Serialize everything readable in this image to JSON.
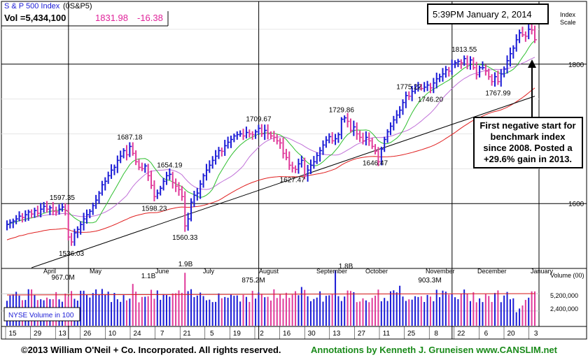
{
  "header": {
    "index_name": "S & P 500 Index",
    "symbol": "(0S&P5)",
    "volume_label": "Vol =5,434,100",
    "last_price": "1831.98",
    "change": "-16.38",
    "timestamp": "5:39PM  January 2, 2014",
    "scale_label_1": "Index",
    "scale_label_2": "Scale"
  },
  "annotation": {
    "lines": [
      "First negative start for",
      "benchmark index",
      "since 2008. Posted a",
      "+29.6% gain in 2013."
    ]
  },
  "footer": {
    "copyright": "©2013 William O'Neil + Co. Incorporated. All rights reserved.",
    "annotator": "Annotations by Kenneth J. Gruneisen www.CANSLIM.net"
  },
  "colors": {
    "up_bar": "#1b1bd6",
    "down_bar": "#e03a9a",
    "ma_short": "#2fbf2f",
    "ma_mid": "#c070d8",
    "ma_50": "#e02020",
    "ma_200": "#000000",
    "vol_avg": "#e02020",
    "highlight": "#e0239a"
  },
  "chart_data": {
    "type": "bar",
    "title": "S & P 500 Index",
    "price_axis": {
      "ticks": [
        1600,
        1800
      ],
      "ylim": [
        1507,
        1890
      ],
      "label": "Index Scale"
    },
    "volume_axis": {
      "ticks": [
        "2,400,000",
        "5,200,000"
      ],
      "ylim": [
        0,
        9200000
      ],
      "label": "Volume (00)",
      "note": "NYSE Volume in 100"
    },
    "x_axis": {
      "day_ticks": [
        "15",
        "29",
        "13",
        "26",
        "10",
        "24",
        "7",
        "21",
        "5",
        "19",
        "2",
        "16",
        "30",
        "13",
        "27",
        "11",
        "25",
        "8",
        "22",
        "6",
        "20",
        "3"
      ],
      "months": [
        "April",
        "May",
        "June",
        "July",
        "August",
        "September",
        "October",
        "November",
        "December",
        "January"
      ]
    },
    "price_labels": [
      {
        "text": "1597.35",
        "pos": "above",
        "bar": 18
      },
      {
        "text": "1536.03",
        "pos": "below",
        "bar": 21
      },
      {
        "text": "1687.18",
        "pos": "above",
        "bar": 40
      },
      {
        "text": "1598.23",
        "pos": "below",
        "bar": 48
      },
      {
        "text": "1654.19",
        "pos": "above",
        "bar": 53
      },
      {
        "text": "1560.33",
        "pos": "below",
        "bar": 58
      },
      {
        "text": "1709.67",
        "pos": "above",
        "bar": 82
      },
      {
        "text": "1627.47",
        "pos": "below",
        "bar": 93
      },
      {
        "text": "1729.86",
        "pos": "above",
        "bar": 109
      },
      {
        "text": "1646.47",
        "pos": "below",
        "bar": 120
      },
      {
        "text": "1775.22",
        "pos": "above",
        "bar": 131
      },
      {
        "text": "1746.20",
        "pos": "below",
        "bar": 138
      },
      {
        "text": "1813.55",
        "pos": "above",
        "bar": 149
      },
      {
        "text": "1767.99",
        "pos": "below",
        "bar": 160
      }
    ],
    "volume_labels": [
      "967.0M",
      "1.1B",
      "875.2M",
      "1.8B",
      "903.3M",
      "1.9B"
    ],
    "series": [
      {
        "name": "Price",
        "ohlc_summary": [
          1570,
          1573,
          1575,
          1578,
          1582,
          1580,
          1584,
          1588,
          1585,
          1590,
          1586,
          1592,
          1596,
          1592,
          1594,
          1589,
          1588,
          1592,
          1595,
          1590,
          1552,
          1545,
          1558,
          1563,
          1570,
          1578,
          1584,
          1589,
          1597,
          1605,
          1615,
          1627,
          1632,
          1640,
          1648,
          1652,
          1662,
          1668,
          1676,
          1670,
          1682,
          1672,
          1660,
          1652,
          1650,
          1654,
          1640,
          1626,
          1610,
          1615,
          1622,
          1632,
          1640,
          1642,
          1630,
          1625,
          1620,
          1610,
          1568,
          1578,
          1602,
          1612,
          1615,
          1628,
          1640,
          1648,
          1655,
          1662,
          1668,
          1676,
          1675,
          1683,
          1688,
          1692,
          1697,
          1699,
          1700,
          1697,
          1702,
          1700,
          1699,
          1703,
          1708,
          1700,
          1705,
          1700,
          1697,
          1695,
          1690,
          1687,
          1672,
          1666,
          1655,
          1651,
          1649,
          1657,
          1662,
          1640,
          1648,
          1655,
          1660,
          1669,
          1676,
          1684,
          1691,
          1696,
          1690,
          1693,
          1699,
          1721,
          1723,
          1718,
          1705,
          1710,
          1700,
          1695,
          1690,
          1695,
          1690,
          1682,
          1675,
          1660,
          1678,
          1692,
          1703,
          1711,
          1720,
          1727,
          1734,
          1745,
          1755,
          1754,
          1761,
          1764,
          1767,
          1765,
          1767,
          1770,
          1766,
          1773,
          1779,
          1782,
          1786,
          1792,
          1790,
          1800,
          1802,
          1804,
          1802,
          1808,
          1800,
          1806,
          1795,
          1785,
          1795,
          1795,
          1790,
          1782,
          1775,
          1782,
          1775,
          1786,
          1793,
          1805,
          1815,
          1823,
          1835,
          1845,
          1842,
          1840,
          1850,
          1849,
          1835
        ]
      }
    ]
  }
}
